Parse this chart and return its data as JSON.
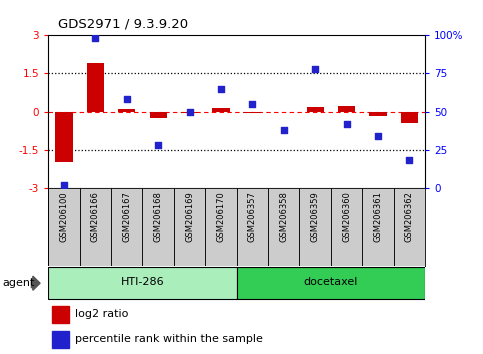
{
  "title": "GDS2971 / 9.3.9.20",
  "samples": [
    "GSM206100",
    "GSM206166",
    "GSM206167",
    "GSM206168",
    "GSM206169",
    "GSM206170",
    "GSM206357",
    "GSM206358",
    "GSM206359",
    "GSM206360",
    "GSM206361",
    "GSM206362"
  ],
  "log2_ratio": [
    -2.0,
    1.9,
    0.08,
    -0.25,
    -0.05,
    0.12,
    -0.05,
    0.0,
    0.18,
    0.22,
    -0.18,
    -0.45
  ],
  "percentile_rank": [
    2,
    98,
    58,
    28,
    50,
    65,
    55,
    38,
    78,
    42,
    34,
    18
  ],
  "ylim": [
    -3,
    3
  ],
  "y2lim": [
    0,
    100
  ],
  "yticks": [
    -3,
    -1.5,
    0,
    1.5,
    3
  ],
  "y2ticks": [
    0,
    25,
    50,
    75,
    100
  ],
  "bar_color": "#cc0000",
  "dot_color": "#2222cc",
  "agent_groups": [
    {
      "label": "HTI-286",
      "start": 0,
      "end": 5,
      "color": "#aaeebb"
    },
    {
      "label": "docetaxel",
      "start": 6,
      "end": 11,
      "color": "#33cc55"
    }
  ],
  "agent_label": "agent",
  "legend1": "log2 ratio",
  "legend2": "percentile rank within the sample"
}
